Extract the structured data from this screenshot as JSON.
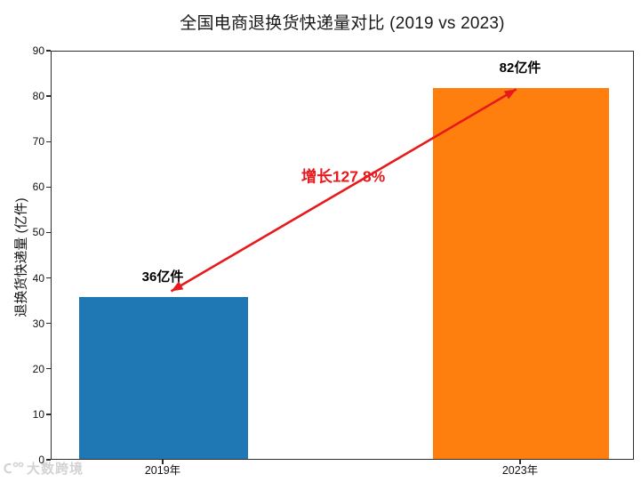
{
  "chart_data": {
    "type": "bar",
    "title": "全国电商退换货快递量对比 (2019 vs 2023)",
    "categories": [
      "2019年",
      "2023年"
    ],
    "values": [
      36,
      82
    ],
    "value_labels": [
      "36亿件",
      "82亿件"
    ],
    "bar_colors": [
      "#1f77b4",
      "#ff7f0e"
    ],
    "xlabel": "",
    "ylabel": "退换货快递量 (亿件)",
    "ylim": [
      0,
      90
    ],
    "ytick_step": 10,
    "grid": false,
    "legend": null,
    "annotation": {
      "text": "增长127.8%",
      "color": "#e8191c",
      "from_value": [
        0,
        36
      ],
      "to_value": [
        1,
        82
      ],
      "arrow_style": "double-headed"
    }
  },
  "watermark": {
    "text": "大数跨境"
  }
}
